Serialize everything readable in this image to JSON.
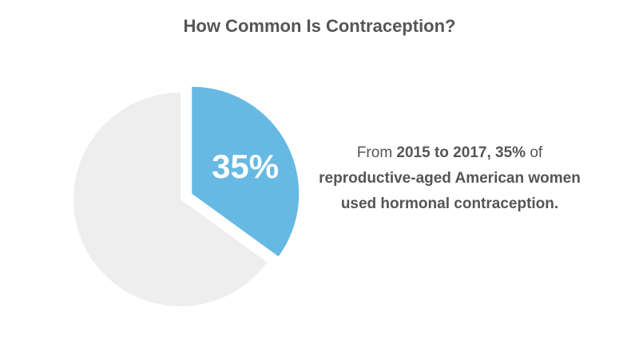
{
  "title": "How Common Is Contraception?",
  "chart_data": {
    "type": "pie",
    "title": "How Common Is Contraception?",
    "slices": [
      {
        "label": "35%",
        "value": 35,
        "color": "#66b9e3",
        "exploded": true
      },
      {
        "label": "",
        "value": 65,
        "color": "#eeeeee",
        "exploded": false
      }
    ]
  },
  "caption": {
    "pre": "From ",
    "bold1": "2015 to 2017, 35%",
    "mid": " of",
    "bold2": "reproductive-aged American women used hormonal contraception."
  }
}
